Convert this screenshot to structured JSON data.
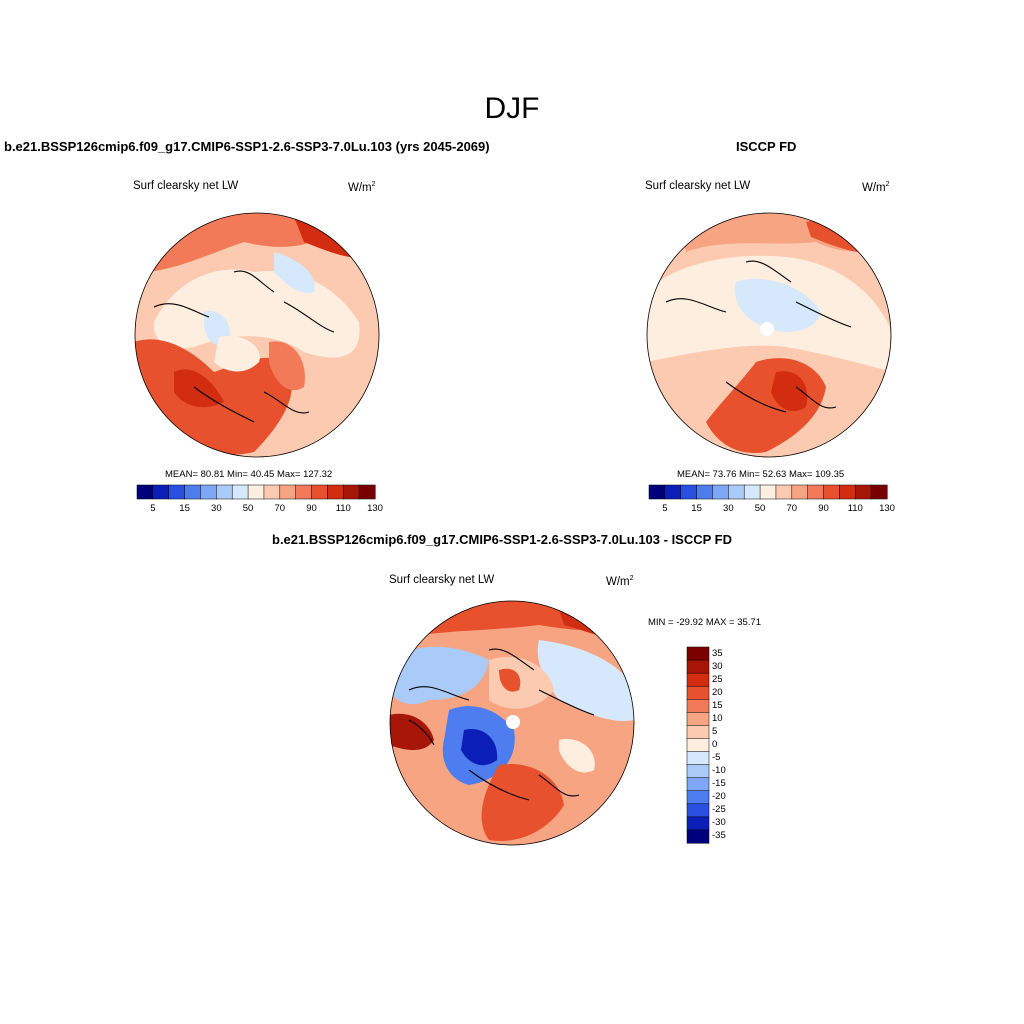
{
  "figure": {
    "title": "DJF"
  },
  "units_main": "W/m",
  "units_sup": "2",
  "panels": {
    "model": {
      "title": "b.e21.BSSP126cmip6.f09_g17.CMIP6-SSP1-2.6-SSP3-7.0Lu.103 (yrs 2045-2069)",
      "variable": "Surf clearsky net LW",
      "stats": "MEAN=  80.81  Min=  40.45  Max= 127.32"
    },
    "obs": {
      "title": "ISCCP FD",
      "variable": "Surf clearsky net LW",
      "stats": "MEAN=  73.76  Min=  52.63  Max= 109.35"
    },
    "diff": {
      "title": "b.e21.BSSP126cmip6.f09_g17.CMIP6-SSP1-2.6-SSP3-7.0Lu.103 - ISCCP FD",
      "variable": "Surf clearsky net LW",
      "stats": "MIN = -29.92 MAX =  35.71"
    }
  },
  "colorbars": {
    "abs_colors": [
      "#00007f",
      "#0b1fb8",
      "#2a4fe0",
      "#4e7df0",
      "#7ea7f5",
      "#aacaf8",
      "#d6e8fb",
      "#fdeee0",
      "#fccab0",
      "#f7a483",
      "#f27a58",
      "#e8512e",
      "#d22d10",
      "#a81607",
      "#7a0000"
    ],
    "abs_tick_labels": [
      "5",
      "15",
      "30",
      "50",
      "70",
      "90",
      "110",
      "130"
    ],
    "diff_colors_top_to_bottom": [
      "#7a0000",
      "#a81607",
      "#d22d10",
      "#e8512e",
      "#f27a58",
      "#f7a483",
      "#fccab0",
      "#fdeee0",
      "#d6e8fb",
      "#aacaf8",
      "#7ea7f5",
      "#4e7df0",
      "#2a4fe0",
      "#0b1fb8",
      "#00007f"
    ],
    "diff_tick_labels": [
      "35",
      "30",
      "25",
      "20",
      "15",
      "10",
      "5",
      "0",
      "-5",
      "-10",
      "-15",
      "-20",
      "-25",
      "-30",
      "-35"
    ]
  },
  "map_colors": {
    "ocean_light": "#fdeee0",
    "warm1": "#fccab0",
    "warm2": "#f7a483",
    "warm3": "#f27a58",
    "warm4": "#e8512e",
    "warm5": "#d22d10",
    "warm6": "#a81607",
    "cool1": "#d6e8fb",
    "cool2": "#aacaf8",
    "cool3": "#7ea7f5",
    "cool4": "#4e7df0",
    "cool5": "#2a4fe0",
    "cool6": "#0b1fb8"
  }
}
